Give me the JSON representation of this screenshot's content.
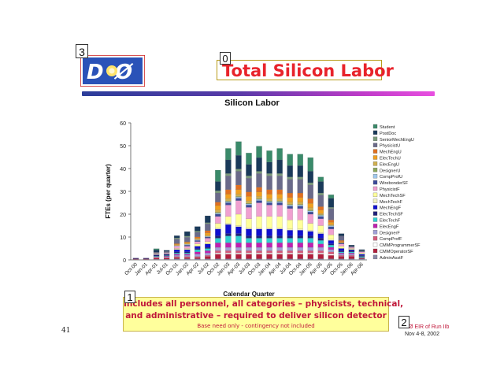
{
  "slide": {
    "title": "Total Silicon Labor",
    "logo_text": "DØ",
    "number_labels": [
      "0",
      "1",
      "2",
      "3"
    ],
    "slide_number": "41",
    "footer_line1": "DØ EIR of Run IIb",
    "footer_line2": "Nov 4-8, 2002",
    "caption_line1": "Includes all personnel, all categories – physicists, technical,",
    "caption_line2": "and administrative – required to deliver silicon detector",
    "caption_line3": "Base need only - contingency not included"
  },
  "colors": {
    "title": "#e8232b",
    "caption_bg": "#ffff9c",
    "caption_text": "#c0173a"
  },
  "chart_data": {
    "type": "bar",
    "stacked": true,
    "title": "Silicon Labor",
    "xlabel": "Calendar Quarter",
    "ylabel": "FTEs (per quarter)",
    "ylim": [
      0,
      60
    ],
    "yticks": [
      0,
      10,
      20,
      30,
      40,
      50,
      60
    ],
    "grid": false,
    "legend_position": "right",
    "categories": [
      "Oct-00",
      "Jan-01",
      "Apr-01",
      "Jul-01",
      "Oct-01",
      "Jan-02",
      "Apr-02",
      "Jul-02",
      "Oct-02",
      "Jan-03",
      "Apr-03",
      "Jul-03",
      "Oct-03",
      "Jan-04",
      "Apr-04",
      "Jul-04",
      "Oct-04",
      "Jan-05",
      "Apr-05",
      "Jul-05",
      "Oct-05",
      "Jan-06",
      "Apr-06"
    ],
    "x_tick_labels": [
      "Oct-00",
      "Jan-01",
      "Apr-01",
      "Jul-01",
      "Oct-01",
      "Jan-02",
      "Apr-02",
      "Jul-02",
      "Oct-02",
      "Jan-03",
      "Apr-03",
      "Jul-03",
      "Oct-03",
      "Jan-04",
      "Apr-04",
      "Jul-04",
      "Oct-04",
      "Jan-05",
      "Apr-05",
      "Jul-05",
      "Oct-05",
      "Jan-06",
      "Apr-06"
    ],
    "series": [
      {
        "name": "AdminAsstF",
        "color": "#8a8aa8",
        "values": [
          0.2,
          0.2,
          0.3,
          0.3,
          0.5,
          0.5,
          0.5,
          0.5,
          0.5,
          0.5,
          0.5,
          0.5,
          0.5,
          0.5,
          0.5,
          0.5,
          0.5,
          0.5,
          0.5,
          0.5,
          0.5,
          0.5,
          0.5
        ]
      },
      {
        "name": "CMMOperatorSF",
        "color": "#b01e3c",
        "values": [
          0.3,
          0.3,
          0.5,
          0.5,
          0.5,
          0.5,
          0.5,
          1,
          2,
          2,
          2,
          2,
          2,
          2,
          2,
          2,
          2,
          2,
          2,
          1.5,
          1,
          1,
          0.5
        ]
      },
      {
        "name": "CMMProgrammerSF",
        "color": "#ffffff",
        "values": [
          0,
          0,
          0,
          0,
          0,
          0,
          0,
          0,
          0.5,
          0.5,
          0.5,
          0.5,
          0.5,
          0.5,
          0.5,
          0.5,
          0.5,
          0.5,
          0.5,
          0.5,
          0,
          0,
          0
        ]
      },
      {
        "name": "CompProfF",
        "color": "#d45a7a",
        "values": [
          0,
          0,
          0.3,
          0.3,
          0.5,
          0.5,
          0.5,
          0.5,
          1,
          1,
          1,
          1,
          1,
          1,
          1,
          1,
          1,
          1,
          1,
          1,
          0.5,
          0.5,
          0
        ]
      },
      {
        "name": "DesignerF",
        "color": "#a0a0d8",
        "values": [
          0,
          0,
          0.3,
          0.3,
          0.5,
          0.5,
          1,
          1,
          1.5,
          1.5,
          1.5,
          1.5,
          1.5,
          1.5,
          1.5,
          1.5,
          1.5,
          1.5,
          1.5,
          1,
          0.5,
          0.5,
          0
        ]
      },
      {
        "name": "ElecEngF",
        "color": "#c020b0",
        "values": [
          0,
          0,
          0,
          0.3,
          0.5,
          0.5,
          1,
          1,
          2,
          2,
          2,
          2,
          2,
          2,
          2,
          2,
          2,
          2,
          1.5,
          1,
          0.5,
          0.5,
          0
        ]
      },
      {
        "name": "ElecTechF",
        "color": "#30d0d0",
        "values": [
          0,
          0,
          0.2,
          0.2,
          0.5,
          0.5,
          1,
          1,
          2,
          3,
          3,
          2,
          2,
          2,
          2,
          2,
          2,
          2,
          1.5,
          1,
          0.5,
          0.5,
          0.5
        ]
      },
      {
        "name": "ElecTechSF",
        "color": "#20207a",
        "values": [
          0.3,
          0.3,
          0.5,
          0.5,
          0.5,
          0.5,
          0.5,
          0.5,
          1,
          1,
          1,
          1,
          1,
          1,
          1,
          1,
          1,
          1,
          1,
          0.5,
          0.5,
          0.5,
          0.5
        ]
      },
      {
        "name": "MechEngF",
        "color": "#1010d0",
        "values": [
          0,
          0,
          0.2,
          0.2,
          1,
          1,
          1,
          1.5,
          3,
          4,
          3,
          3,
          3,
          3,
          3,
          2.5,
          2.5,
          2,
          2,
          1.5,
          1,
          0.5,
          0.5
        ]
      },
      {
        "name": "MechTechF",
        "color": "#f0f0c0",
        "values": [
          0,
          0,
          0,
          0,
          0,
          0,
          0,
          0,
          0.5,
          0.5,
          0.5,
          0.5,
          0.5,
          0.5,
          0.5,
          0.5,
          0.5,
          0.5,
          0.5,
          0.5,
          0,
          0,
          0
        ]
      },
      {
        "name": "MechTechSF",
        "color": "#ffff9a",
        "values": [
          0,
          0,
          0.3,
          0.3,
          0.5,
          0.5,
          1,
          1,
          2,
          3,
          5,
          4,
          5,
          5,
          5,
          4,
          4,
          3,
          3,
          2,
          1,
          0.5,
          0.5
        ]
      },
      {
        "name": "PhysicistF",
        "color": "#f0a0d0",
        "values": [
          0,
          0,
          0.3,
          0.3,
          1,
          1,
          1,
          1.5,
          3,
          5,
          6,
          5,
          6,
          5,
          5,
          5,
          5,
          4,
          3,
          2.5,
          1,
          0.5,
          0.5
        ]
      },
      {
        "name": "WirebonderSF",
        "color": "#3a4a9a",
        "values": [
          0,
          0,
          0,
          0,
          0,
          0.5,
          0.5,
          0.5,
          1,
          1,
          1,
          1,
          1,
          1,
          1,
          1,
          1,
          1,
          1,
          1,
          0.5,
          0,
          0
        ]
      },
      {
        "name": "CompProfU",
        "color": "#a0c8ee",
        "values": [
          0,
          0,
          0,
          0,
          0.3,
          0.3,
          0.3,
          0.3,
          0.5,
          0.5,
          0.5,
          0.5,
          0.5,
          0.5,
          0.5,
          0.5,
          0.5,
          0.5,
          0.5,
          0.5,
          0,
          0,
          0
        ]
      },
      {
        "name": "DesignerU",
        "color": "#8aa85a",
        "values": [
          0,
          0,
          0,
          0,
          0,
          0,
          0,
          0,
          0.3,
          0.3,
          0.3,
          0.3,
          0.3,
          0.3,
          0.3,
          0.3,
          0.3,
          0.3,
          0.3,
          0,
          0,
          0,
          0
        ]
      },
      {
        "name": "ElecEngU",
        "color": "#d0b050",
        "values": [
          0,
          0,
          0,
          0,
          0,
          0.3,
          0.3,
          0.5,
          1,
          1,
          1,
          1,
          1,
          1,
          1,
          1,
          1,
          1,
          0.5,
          0.5,
          0,
          0,
          0
        ]
      },
      {
        "name": "ElecTechU",
        "color": "#f0a020",
        "values": [
          0,
          0,
          0,
          0,
          0.5,
          0.5,
          0.5,
          1,
          2,
          2,
          2,
          2,
          2,
          2,
          2,
          2,
          2,
          2,
          1.5,
          1,
          0.5,
          0,
          0
        ]
      },
      {
        "name": "MechEngU",
        "color": "#e07020",
        "values": [
          0,
          0,
          0,
          0,
          0.3,
          0.3,
          0.5,
          1,
          1.5,
          2,
          2,
          2,
          2,
          2,
          2,
          2,
          2,
          2,
          1.5,
          1,
          0.5,
          0,
          0
        ]
      },
      {
        "name": "PhysicistU",
        "color": "#6a6a8a",
        "values": [
          0,
          0,
          0.5,
          0.5,
          2,
          2,
          2,
          3,
          4,
          6,
          6,
          6,
          6,
          6,
          6,
          6,
          6,
          6,
          5,
          5,
          2,
          0.5,
          0.5
        ]
      },
      {
        "name": "SeniorMechEngU",
        "color": "#7a9a7a",
        "values": [
          0,
          0,
          0,
          0,
          0.5,
          0.5,
          0.5,
          0.5,
          1,
          1,
          1,
          1,
          1,
          1,
          1,
          1,
          1,
          1,
          1,
          0.5,
          0,
          0,
          0
        ]
      },
      {
        "name": "PostDoc",
        "color": "#1a3a5a",
        "values": [
          0,
          0,
          1,
          0.5,
          1,
          2,
          2,
          3,
          4,
          6,
          6,
          5,
          6,
          5,
          6,
          5,
          5,
          5,
          5,
          4,
          1,
          0.5,
          0.5
        ]
      },
      {
        "name": "Student",
        "color": "#3a8a6a",
        "values": [
          0,
          0,
          0.5,
          0,
          0,
          0,
          0,
          0,
          5,
          5,
          6,
          5,
          5,
          5,
          5,
          5,
          5,
          6,
          2,
          1.5,
          0,
          0,
          0
        ]
      }
    ]
  }
}
